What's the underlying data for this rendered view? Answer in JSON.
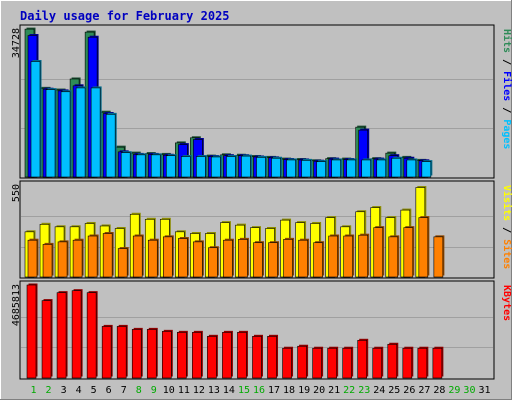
{
  "chart_data": {
    "type": "bar",
    "title": "Daily usage for February 2025",
    "categories": [
      "1",
      "2",
      "3",
      "4",
      "5",
      "6",
      "7",
      "8",
      "9",
      "10",
      "11",
      "12",
      "13",
      "14",
      "15",
      "16",
      "17",
      "18",
      "19",
      "20",
      "21",
      "22",
      "23",
      "24",
      "25",
      "26",
      "27",
      "28",
      "29",
      "30",
      "31"
    ],
    "weekend_days": [
      "1",
      "2",
      "8",
      "9",
      "15",
      "16",
      "22",
      "23",
      "29",
      "30"
    ],
    "panels": [
      {
        "id": "hits-files-pages",
        "ymax_label": "34728",
        "ylim": [
          0,
          34728
        ],
        "right_label": [
          {
            "text": "Pages",
            "color": "#00c0ff"
          },
          {
            "text": " / ",
            "color": "#000000"
          },
          {
            "text": "Files",
            "color": "#0000ff"
          },
          {
            "text": " / ",
            "color": "#000000"
          },
          {
            "text": "Hits",
            "color": "#2e8b57"
          }
        ],
        "series": [
          {
            "name": "Hits",
            "color": "#2e8b57",
            "values": [
              34700,
              20800,
              20400,
              23000,
              34000,
              15200,
              7000,
              5600,
              5500,
              5300,
              8000,
              9200,
              4900,
              5200,
              5100,
              4800,
              4600,
              4200,
              4100,
              3800,
              4300,
              4200,
              11700,
              4300,
              5600,
              4600,
              3900,
              null,
              null,
              null,
              null
            ]
          },
          {
            "name": "Files",
            "color": "#0000ff",
            "values": [
              33200,
              20600,
              20200,
              21400,
              32800,
              14900,
              5900,
              5300,
              5300,
              5100,
              7600,
              8800,
              4800,
              5000,
              5000,
              4700,
              4500,
              4100,
              4000,
              3700,
              4200,
              4100,
              11000,
              4200,
              5000,
              4400,
              3800,
              null,
              null,
              null,
              null
            ]
          },
          {
            "name": "Pages",
            "color": "#00c0ff",
            "values": [
              27100,
              20500,
              20000,
              20900,
              20900,
              14700,
              5700,
              5200,
              5200,
              5000,
              4800,
              4800,
              4700,
              4800,
              4900,
              4600,
              4400,
              4000,
              3900,
              3600,
              4000,
              4000,
              4000,
              4000,
              4400,
              4000,
              3600,
              null,
              null,
              null,
              null
            ]
          }
        ]
      },
      {
        "id": "visits-sites",
        "ymax_label": "550",
        "ylim": [
          0,
          550
        ],
        "right_label": [
          {
            "text": "Sites",
            "color": "#ff8000"
          },
          {
            "text": " / ",
            "color": "#000000"
          },
          {
            "text": "Visits",
            "color": "#ffff00"
          }
        ],
        "series": [
          {
            "name": "Visits",
            "color": "#ffff00",
            "values": [
              270,
              315,
              300,
              300,
              320,
              305,
              290,
              375,
              345,
              345,
              270,
              260,
              260,
              325,
              310,
              295,
              290,
              340,
              325,
              320,
              355,
              300,
              390,
              415,
              355,
              400,
              535,
              null,
              null,
              null,
              null
            ]
          },
          {
            "name": "Sites",
            "color": "#ff8000",
            "values": [
              220,
              195,
              210,
              220,
              245,
              260,
              170,
              245,
              220,
              240,
              230,
              210,
              175,
              220,
              225,
              205,
              205,
              225,
              220,
              205,
              245,
              245,
              250,
              295,
              240,
              295,
              355,
              240,
              null,
              null,
              null
            ]
          }
        ]
      },
      {
        "id": "kbytes",
        "ymax_label": "4685813",
        "ylim": [
          0,
          4685813
        ],
        "right_label": [
          {
            "text": "KBytes",
            "color": "#ff0000"
          }
        ],
        "series": [
          {
            "name": "KBytes",
            "color": "#ff0000",
            "values": [
              4685813,
              3900000,
              4300000,
              4400000,
              4300000,
              2600000,
              2600000,
              2450000,
              2450000,
              2350000,
              2300000,
              2300000,
              2100000,
              2300000,
              2300000,
              2100000,
              2100000,
              1500000,
              1600000,
              1500000,
              1500000,
              1500000,
              1900000,
              1500000,
              1700000,
              1500000,
              1500000,
              1500000,
              null,
              null,
              null
            ]
          }
        ]
      }
    ],
    "colors": {
      "background": "#c0c0c0",
      "plot_area": "#c0c0c0",
      "border_dark": "#808080",
      "gridline": "#a0a0a0",
      "title": "#0000c0",
      "weekday_label": "#000000",
      "weekend_label": "#00aa00"
    }
  }
}
